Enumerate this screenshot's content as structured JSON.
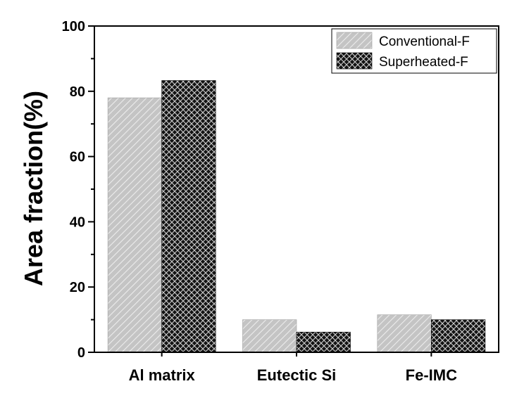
{
  "chart_data": {
    "type": "bar",
    "categories": [
      "Al matrix",
      "Eutectic Si",
      "Fe-IMC"
    ],
    "series": [
      {
        "name": "Conventional-F",
        "values": [
          78,
          10,
          11.5
        ],
        "color": "#c8c8c8",
        "pattern": "diagonal-hatch"
      },
      {
        "name": "Superheated-F",
        "values": [
          83.3,
          6.2,
          10
        ],
        "color": "#1a1a1a",
        "pattern": "crosshatch"
      }
    ],
    "ylabel": "Area fraction(%)",
    "xlabel": "",
    "ylim": [
      0,
      100
    ],
    "yticks": [
      0,
      20,
      40,
      60,
      80,
      100
    ],
    "ytick_labels": [
      "0",
      "20",
      "40",
      "60",
      "80",
      "100"
    ],
    "grid": false,
    "legend_position": "top-right"
  }
}
